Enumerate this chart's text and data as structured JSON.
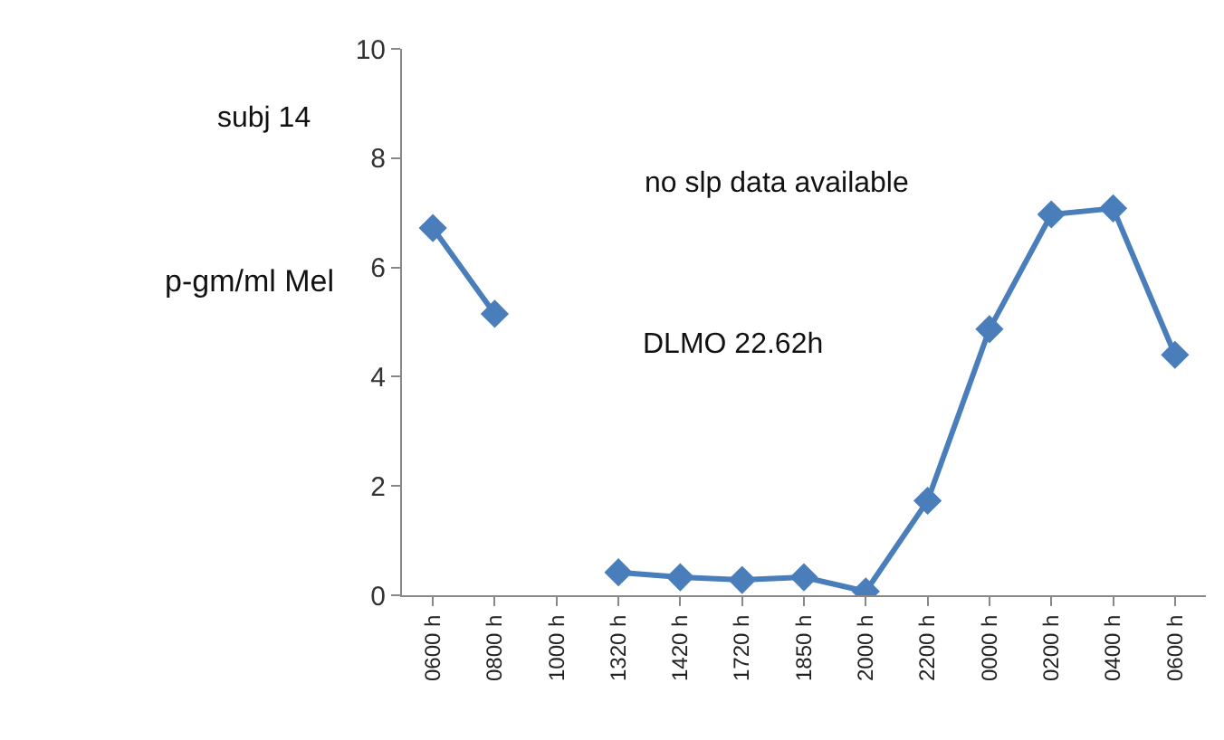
{
  "chart_data": {
    "type": "line",
    "ylabel": "p-gm/ml Mel",
    "annotations": [
      "subj 14",
      "no slp data available",
      "DLMO 22.62h"
    ],
    "categories": [
      "0600 h",
      "0800 h",
      "1000 h",
      "1320 h",
      "1420 h",
      "1720 h",
      "1850 h",
      "2000 h",
      "2200 h",
      "0000 h",
      "0200 h",
      "0400 h",
      "0600 h"
    ],
    "series": [
      {
        "color": "#4a7ebb",
        "values": [
          6.72,
          5.15,
          null,
          0.42,
          0.33,
          0.28,
          0.33,
          0.07,
          1.73,
          4.87,
          6.97,
          7.08,
          4.4
        ]
      }
    ],
    "ylim": [
      0,
      10
    ],
    "yticks": [
      0,
      2,
      4,
      6,
      8,
      10
    ],
    "grid": false,
    "legend": false,
    "marker": "diamond",
    "line_style": "solid"
  }
}
